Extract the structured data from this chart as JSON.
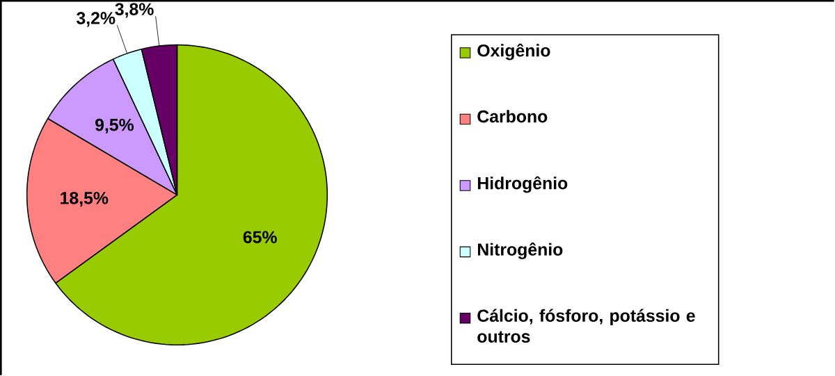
{
  "chart_data": {
    "type": "pie",
    "categories": [
      "Oxigênio",
      "Carbono",
      "Hidrogênio",
      "Nitrogênio",
      "Cálcio, fósforo, potássio e outros"
    ],
    "values": [
      65,
      18.5,
      9.5,
      3.2,
      3.8
    ],
    "colors": [
      "#99cc00",
      "#ff8080",
      "#cc99ff",
      "#ccffff",
      "#660066"
    ],
    "value_labels": [
      "65%",
      "18,5%",
      "9,5%",
      "3,2%",
      "3,8%"
    ],
    "legend": "right"
  }
}
